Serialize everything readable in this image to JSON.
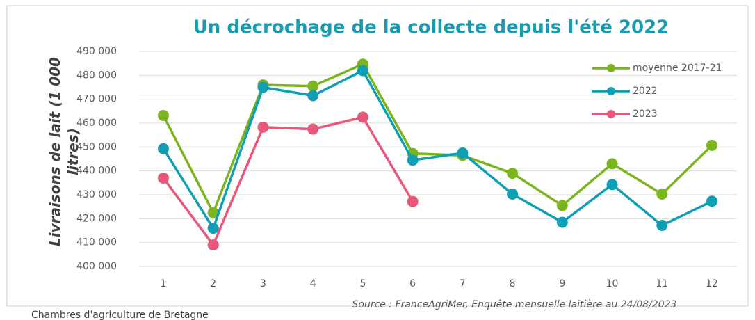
{
  "chart_data": {
    "type": "line",
    "title": "Un décrochage de la collecte depuis l'été 2022",
    "y_label": "Livraisons de lait (1 000 litres)",
    "source": "Source : FranceAgriMer, Enquête mensuelle laitière au 24/08/2023",
    "footer": "Chambres d'agriculture de Bretagne",
    "categories": [
      "1",
      "2",
      "3",
      "4",
      "5",
      "6",
      "7",
      "8",
      "9",
      "10",
      "11",
      "12"
    ],
    "series": [
      {
        "name": "moyenne 2017-21",
        "color": "#7ab51d",
        "values": [
          463200,
          422500,
          476000,
          475500,
          484700,
          447300,
          446500,
          439000,
          425500,
          443000,
          430300,
          450700
        ]
      },
      {
        "name": "2022",
        "color": "#0e9fb4",
        "values": [
          449300,
          416000,
          475000,
          471500,
          482000,
          444500,
          447500,
          430300,
          418500,
          434300,
          417200,
          427300
        ]
      },
      {
        "name": "2023",
        "color": "#e8577a",
        "values": [
          437000,
          409000,
          458300,
          457500,
          462500,
          427200,
          null,
          null,
          null,
          null,
          null,
          null
        ]
      }
    ],
    "ylim": [
      400000,
      490000
    ],
    "yticks": [
      {
        "value": 400000,
        "label": "400 000"
      },
      {
        "value": 410000,
        "label": "410 000"
      },
      {
        "value": 420000,
        "label": "420 000"
      },
      {
        "value": 430000,
        "label": "430 000"
      },
      {
        "value": 440000,
        "label": "440 000"
      },
      {
        "value": 450000,
        "label": "450 000"
      },
      {
        "value": 460000,
        "label": "460 000"
      },
      {
        "value": 470000,
        "label": "470 000"
      },
      {
        "value": 480000,
        "label": "480 000"
      },
      {
        "value": 490000,
        "label": "490 000"
      }
    ],
    "grid": true,
    "legend": "top-right"
  }
}
